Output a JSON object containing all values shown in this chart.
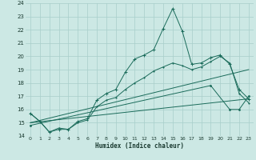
{
  "xlabel": "Humidex (Indice chaleur)",
  "xlim": [
    -0.5,
    23.5
  ],
  "ylim": [
    14,
    24
  ],
  "yticks": [
    14,
    15,
    16,
    17,
    18,
    19,
    20,
    21,
    22,
    23,
    24
  ],
  "xticks": [
    0,
    1,
    2,
    3,
    4,
    5,
    6,
    7,
    8,
    9,
    10,
    11,
    12,
    13,
    14,
    15,
    16,
    17,
    18,
    19,
    20,
    21,
    22,
    23
  ],
  "bg_color": "#cce8e4",
  "grid_color": "#a8ceca",
  "line_color": "#1a6b5a",
  "line1_x": [
    0,
    1,
    2,
    3,
    4,
    5,
    6,
    7,
    8,
    9,
    10,
    11,
    12,
    13,
    14,
    15,
    16,
    17,
    18,
    19,
    20,
    21,
    22,
    23
  ],
  "line1_y": [
    15.7,
    15.1,
    14.3,
    14.5,
    14.5,
    15.1,
    15.3,
    16.7,
    17.2,
    17.5,
    18.8,
    19.8,
    20.1,
    20.5,
    22.1,
    23.6,
    21.9,
    19.4,
    19.5,
    19.9,
    20.1,
    19.4,
    17.5,
    16.8
  ],
  "line2_x": [
    0,
    1,
    2,
    3,
    4,
    5,
    6,
    7,
    8,
    9,
    10,
    11,
    12,
    13,
    14,
    15,
    16,
    17,
    18,
    19,
    20,
    21,
    22,
    23
  ],
  "line2_y": [
    15.7,
    15.1,
    14.3,
    14.6,
    14.5,
    15.0,
    15.2,
    16.2,
    16.7,
    16.9,
    17.5,
    18.0,
    18.4,
    18.9,
    19.2,
    19.5,
    19.3,
    19.0,
    19.2,
    19.6,
    20.0,
    19.5,
    17.2,
    16.5
  ],
  "line3_x": [
    0,
    23
  ],
  "line3_y": [
    15.0,
    19.0
  ],
  "line4_x": [
    0,
    23
  ],
  "line4_y": [
    15.0,
    16.8
  ],
  "line5_x": [
    0,
    19,
    21,
    22,
    23
  ],
  "line5_y": [
    14.8,
    17.8,
    16.0,
    16.0,
    17.0
  ]
}
